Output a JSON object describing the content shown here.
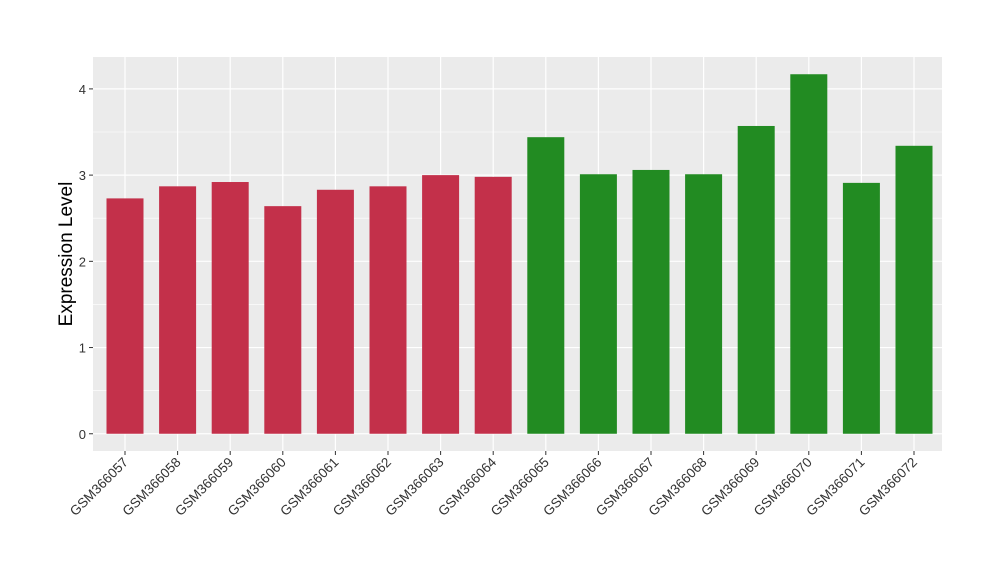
{
  "chart_data": {
    "type": "bar",
    "title": "",
    "xlabel": "",
    "ylabel": "Expression Level",
    "categories": [
      "GSM366057",
      "GSM366058",
      "GSM366059",
      "GSM366060",
      "GSM366061",
      "GSM366062",
      "GSM366063",
      "GSM366064",
      "GSM366065",
      "GSM366066",
      "GSM366067",
      "GSM366068",
      "GSM366069",
      "GSM366070",
      "GSM366071",
      "GSM366072"
    ],
    "values": [
      2.73,
      2.87,
      2.92,
      2.64,
      2.83,
      2.87,
      3.0,
      2.98,
      3.44,
      3.01,
      3.06,
      3.01,
      3.57,
      4.17,
      2.91,
      3.34
    ],
    "bar_colors": [
      "#C3304A",
      "#C3304A",
      "#C3304A",
      "#C3304A",
      "#C3304A",
      "#C3304A",
      "#C3304A",
      "#C3304A",
      "#228B22",
      "#228B22",
      "#228B22",
      "#228B22",
      "#228B22",
      "#228B22",
      "#228B22",
      "#228B22"
    ],
    "yticks": [
      0,
      1,
      2,
      3,
      4
    ],
    "ylim": [
      -0.2,
      4.37
    ],
    "grid": true,
    "panel_background": "#EBEBEB",
    "grid_color": "#FFFFFF"
  }
}
